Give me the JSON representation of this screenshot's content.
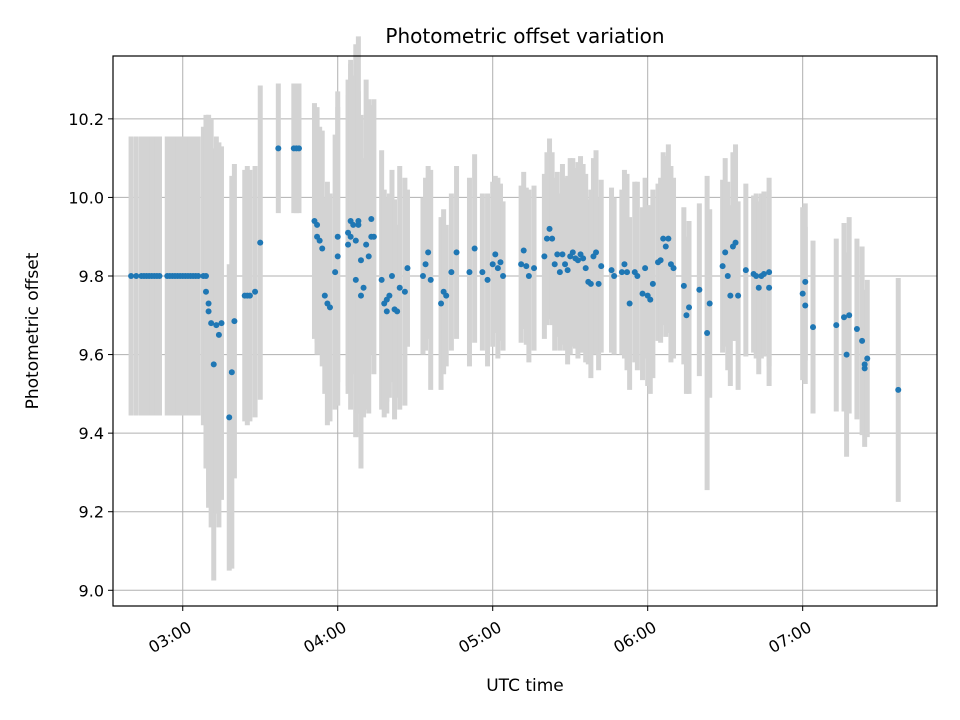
{
  "chart_data": {
    "type": "scatter",
    "title": "Photometric offset variation",
    "xlabel": "UTC time",
    "ylabel": "Photometric offset",
    "x_ticks": [
      "03:00",
      "04:00",
      "05:00",
      "06:00",
      "07:00"
    ],
    "y_ticks": [
      "9.0",
      "9.2",
      "9.4",
      "9.6",
      "9.8",
      "10.0",
      "10.2"
    ],
    "xlim": [
      "02:33",
      "07:52"
    ],
    "ylim": [
      8.96,
      10.36
    ],
    "grid": true,
    "colors": {
      "point": "#1f77b4",
      "errorbar": "#d3d3d3",
      "grid": "#b0b0b0"
    },
    "points": [
      {
        "t": "02:40",
        "y": 9.8,
        "err": 0.355
      },
      {
        "t": "02:42",
        "y": 9.8,
        "err": 0.355
      },
      {
        "t": "02:44",
        "y": 9.8,
        "err": 0.355
      },
      {
        "t": "02:45",
        "y": 9.8,
        "err": 0.355
      },
      {
        "t": "02:46",
        "y": 9.8,
        "err": 0.355
      },
      {
        "t": "02:47",
        "y": 9.8,
        "err": 0.355
      },
      {
        "t": "02:48",
        "y": 9.8,
        "err": 0.355
      },
      {
        "t": "02:49",
        "y": 9.8,
        "err": 0.355
      },
      {
        "t": "02:50",
        "y": 9.8,
        "err": 0.355
      },
      {
        "t": "02:51",
        "y": 9.8,
        "err": 0.355
      },
      {
        "t": "02:54",
        "y": 9.8,
        "err": 0.355
      },
      {
        "t": "02:55",
        "y": 9.8,
        "err": 0.355
      },
      {
        "t": "02:56",
        "y": 9.8,
        "err": 0.355
      },
      {
        "t": "02:57",
        "y": 9.8,
        "err": 0.355
      },
      {
        "t": "02:58",
        "y": 9.8,
        "err": 0.355
      },
      {
        "t": "02:59",
        "y": 9.8,
        "err": 0.355
      },
      {
        "t": "03:00",
        "y": 9.8,
        "err": 0.355
      },
      {
        "t": "03:01",
        "y": 9.8,
        "err": 0.355
      },
      {
        "t": "03:02",
        "y": 9.8,
        "err": 0.355
      },
      {
        "t": "03:03",
        "y": 9.8,
        "err": 0.355
      },
      {
        "t": "03:04",
        "y": 9.8,
        "err": 0.355
      },
      {
        "t": "03:05",
        "y": 9.8,
        "err": 0.355
      },
      {
        "t": "03:06",
        "y": 9.8,
        "err": 0.355
      },
      {
        "t": "03:08",
        "y": 9.8,
        "err": 0.38
      },
      {
        "t": "03:09",
        "y": 9.8,
        "err": 0.4
      },
      {
        "t": "03:09",
        "y": 9.76,
        "err": 0.45
      },
      {
        "t": "03:10",
        "y": 9.73,
        "err": 0.48
      },
      {
        "t": "03:10",
        "y": 9.71,
        "err": 0.5
      },
      {
        "t": "03:11",
        "y": 9.68,
        "err": 0.52
      },
      {
        "t": "03:12",
        "y": 9.575,
        "err": 0.55
      },
      {
        "t": "03:13",
        "y": 9.675,
        "err": 0.48
      },
      {
        "t": "03:14",
        "y": 9.65,
        "err": 0.49
      },
      {
        "t": "03:15",
        "y": 9.68,
        "err": 0.45
      },
      {
        "t": "03:18",
        "y": 9.44,
        "err": 0.39
      },
      {
        "t": "03:19",
        "y": 9.555,
        "err": 0.5
      },
      {
        "t": "03:20",
        "y": 9.685,
        "err": 0.4
      },
      {
        "t": "03:24",
        "y": 9.75,
        "err": 0.32
      },
      {
        "t": "03:25",
        "y": 9.75,
        "err": 0.33
      },
      {
        "t": "03:26",
        "y": 9.75,
        "err": 0.32
      },
      {
        "t": "03:28",
        "y": 9.76,
        "err": 0.32
      },
      {
        "t": "03:30",
        "y": 9.885,
        "err": 0.4
      },
      {
        "t": "03:37",
        "y": 10.125,
        "err": 0.165
      },
      {
        "t": "03:43",
        "y": 10.125,
        "err": 0.165
      },
      {
        "t": "03:44",
        "y": 10.125,
        "err": 0.165
      },
      {
        "t": "03:45",
        "y": 10.125,
        "err": 0.165
      },
      {
        "t": "03:51",
        "y": 9.94,
        "err": 0.3
      },
      {
        "t": "03:52",
        "y": 9.93,
        "err": 0.3
      },
      {
        "t": "03:52",
        "y": 9.9,
        "err": 0.3
      },
      {
        "t": "03:53",
        "y": 9.89,
        "err": 0.29
      },
      {
        "t": "03:54",
        "y": 9.87,
        "err": 0.3
      },
      {
        "t": "03:55",
        "y": 9.75,
        "err": 0.25
      },
      {
        "t": "03:56",
        "y": 9.73,
        "err": 0.31
      },
      {
        "t": "03:57",
        "y": 9.72,
        "err": 0.29
      },
      {
        "t": "03:59",
        "y": 9.81,
        "err": 0.35
      },
      {
        "t": "04:00",
        "y": 9.85,
        "err": 0.38
      },
      {
        "t": "04:00",
        "y": 9.9,
        "err": 0.37
      },
      {
        "t": "04:04",
        "y": 9.88,
        "err": 0.38
      },
      {
        "t": "04:04",
        "y": 9.91,
        "err": 0.39
      },
      {
        "t": "04:05",
        "y": 9.94,
        "err": 0.41
      },
      {
        "t": "04:05",
        "y": 9.9,
        "err": 0.44
      },
      {
        "t": "04:06",
        "y": 9.93,
        "err": 0.38
      },
      {
        "t": "04:07",
        "y": 9.79,
        "err": 0.4
      },
      {
        "t": "04:07",
        "y": 9.89,
        "err": 0.5
      },
      {
        "t": "04:08",
        "y": 9.93,
        "err": 0.48
      },
      {
        "t": "04:08",
        "y": 9.94,
        "err": 0.33
      },
      {
        "t": "04:09",
        "y": 9.84,
        "err": 0.37
      },
      {
        "t": "04:09",
        "y": 9.75,
        "err": 0.44
      },
      {
        "t": "04:10",
        "y": 9.77,
        "err": 0.33
      },
      {
        "t": "04:11",
        "y": 9.88,
        "err": 0.42
      },
      {
        "t": "04:12",
        "y": 9.85,
        "err": 0.4
      },
      {
        "t": "04:13",
        "y": 9.9,
        "err": 0.3
      },
      {
        "t": "04:13",
        "y": 9.945,
        "err": 0.29
      },
      {
        "t": "04:14",
        "y": 9.9,
        "err": 0.35
      },
      {
        "t": "04:17",
        "y": 9.79,
        "err": 0.33
      },
      {
        "t": "04:18",
        "y": 9.73,
        "err": 0.29
      },
      {
        "t": "04:19",
        "y": 9.74,
        "err": 0.26
      },
      {
        "t": "04:19",
        "y": 9.71,
        "err": 0.26
      },
      {
        "t": "04:20",
        "y": 9.75,
        "err": 0.26
      },
      {
        "t": "04:21",
        "y": 9.8,
        "err": 0.27
      },
      {
        "t": "04:22",
        "y": 9.715,
        "err": 0.28
      },
      {
        "t": "04:23",
        "y": 9.71,
        "err": 0.22
      },
      {
        "t": "04:24",
        "y": 9.77,
        "err": 0.31
      },
      {
        "t": "04:26",
        "y": 9.76,
        "err": 0.29
      },
      {
        "t": "04:27",
        "y": 9.82,
        "err": 0.2
      },
      {
        "t": "04:33",
        "y": 9.8,
        "err": 0.2
      },
      {
        "t": "04:34",
        "y": 9.83,
        "err": 0.22
      },
      {
        "t": "04:35",
        "y": 9.86,
        "err": 0.22
      },
      {
        "t": "04:36",
        "y": 9.79,
        "err": 0.28
      },
      {
        "t": "04:40",
        "y": 9.73,
        "err": 0.22
      },
      {
        "t": "04:41",
        "y": 9.76,
        "err": 0.21
      },
      {
        "t": "04:42",
        "y": 9.75,
        "err": 0.18
      },
      {
        "t": "04:44",
        "y": 9.81,
        "err": 0.2
      },
      {
        "t": "04:46",
        "y": 9.86,
        "err": 0.22
      },
      {
        "t": "04:51",
        "y": 9.81,
        "err": 0.24
      },
      {
        "t": "04:53",
        "y": 9.87,
        "err": 0.24
      },
      {
        "t": "04:56",
        "y": 9.81,
        "err": 0.2
      },
      {
        "t": "04:58",
        "y": 9.79,
        "err": 0.22
      },
      {
        "t": "05:00",
        "y": 9.83,
        "err": 0.21
      },
      {
        "t": "05:01",
        "y": 9.855,
        "err": 0.2
      },
      {
        "t": "05:02",
        "y": 9.82,
        "err": 0.23
      },
      {
        "t": "05:03",
        "y": 9.835,
        "err": 0.2
      },
      {
        "t": "05:04",
        "y": 9.8,
        "err": 0.19
      },
      {
        "t": "05:11",
        "y": 9.83,
        "err": 0.2
      },
      {
        "t": "05:12",
        "y": 9.865,
        "err": 0.2
      },
      {
        "t": "05:13",
        "y": 9.825,
        "err": 0.2
      },
      {
        "t": "05:14",
        "y": 9.8,
        "err": 0.22
      },
      {
        "t": "05:16",
        "y": 9.82,
        "err": 0.21
      },
      {
        "t": "05:20",
        "y": 9.85,
        "err": 0.21
      },
      {
        "t": "05:21",
        "y": 9.895,
        "err": 0.22
      },
      {
        "t": "05:22",
        "y": 9.92,
        "err": 0.23
      },
      {
        "t": "05:23",
        "y": 9.895,
        "err": 0.22
      },
      {
        "t": "05:24",
        "y": 9.83,
        "err": 0.22
      },
      {
        "t": "05:25",
        "y": 9.855,
        "err": 0.21
      },
      {
        "t": "05:26",
        "y": 9.81,
        "err": 0.2
      },
      {
        "t": "05:27",
        "y": 9.855,
        "err": 0.23
      },
      {
        "t": "05:28",
        "y": 9.83,
        "err": 0.22
      },
      {
        "t": "05:29",
        "y": 9.815,
        "err": 0.24
      },
      {
        "t": "05:30",
        "y": 9.85,
        "err": 0.25
      },
      {
        "t": "05:31",
        "y": 9.86,
        "err": 0.24
      },
      {
        "t": "05:32",
        "y": 9.845,
        "err": 0.23
      },
      {
        "t": "05:33",
        "y": 9.84,
        "err": 0.25
      },
      {
        "t": "05:34",
        "y": 9.855,
        "err": 0.25
      },
      {
        "t": "05:35",
        "y": 9.845,
        "err": 0.24
      },
      {
        "t": "05:36",
        "y": 9.82,
        "err": 0.24
      },
      {
        "t": "05:37",
        "y": 9.785,
        "err": 0.21
      },
      {
        "t": "05:38",
        "y": 9.78,
        "err": 0.24
      },
      {
        "t": "05:39",
        "y": 9.85,
        "err": 0.25
      },
      {
        "t": "05:40",
        "y": 9.86,
        "err": 0.26
      },
      {
        "t": "05:41",
        "y": 9.78,
        "err": 0.22
      },
      {
        "t": "05:42",
        "y": 9.825,
        "err": 0.22
      },
      {
        "t": "05:46",
        "y": 9.815,
        "err": 0.21
      },
      {
        "t": "05:47",
        "y": 9.8,
        "err": 0.2
      },
      {
        "t": "05:50",
        "y": 9.81,
        "err": 0.21
      },
      {
        "t": "05:51",
        "y": 9.83,
        "err": 0.24
      },
      {
        "t": "05:52",
        "y": 9.81,
        "err": 0.25
      },
      {
        "t": "05:53",
        "y": 9.73,
        "err": 0.22
      },
      {
        "t": "05:55",
        "y": 9.81,
        "err": 0.23
      },
      {
        "t": "05:56",
        "y": 9.8,
        "err": 0.24
      },
      {
        "t": "05:58",
        "y": 9.755,
        "err": 0.22
      },
      {
        "t": "05:59",
        "y": 9.82,
        "err": 0.23
      },
      {
        "t": "06:00",
        "y": 9.75,
        "err": 0.23
      },
      {
        "t": "06:01",
        "y": 9.74,
        "err": 0.24
      },
      {
        "t": "06:02",
        "y": 9.78,
        "err": 0.24
      },
      {
        "t": "06:04",
        "y": 9.835,
        "err": 0.2
      },
      {
        "t": "06:05",
        "y": 9.84,
        "err": 0.21
      },
      {
        "t": "06:06",
        "y": 9.895,
        "err": 0.22
      },
      {
        "t": "06:07",
        "y": 9.875,
        "err": 0.23
      },
      {
        "t": "06:08",
        "y": 9.895,
        "err": 0.24
      },
      {
        "t": "06:09",
        "y": 9.83,
        "err": 0.25
      },
      {
        "t": "06:10",
        "y": 9.82,
        "err": 0.23
      },
      {
        "t": "06:14",
        "y": 9.775,
        "err": 0.2
      },
      {
        "t": "06:15",
        "y": 9.7,
        "err": 0.2
      },
      {
        "t": "06:16",
        "y": 9.72,
        "err": 0.22
      },
      {
        "t": "06:20",
        "y": 9.765,
        "err": 0.22
      },
      {
        "t": "06:23",
        "y": 9.655,
        "err": 0.4
      },
      {
        "t": "06:24",
        "y": 9.73,
        "err": 0.24
      },
      {
        "t": "06:29",
        "y": 9.825,
        "err": 0.22
      },
      {
        "t": "06:30",
        "y": 9.86,
        "err": 0.24
      },
      {
        "t": "06:31",
        "y": 9.8,
        "err": 0.24
      },
      {
        "t": "06:32",
        "y": 9.75,
        "err": 0.23
      },
      {
        "t": "06:33",
        "y": 9.875,
        "err": 0.24
      },
      {
        "t": "06:34",
        "y": 9.885,
        "err": 0.25
      },
      {
        "t": "06:35",
        "y": 9.75,
        "err": 0.24
      },
      {
        "t": "06:38",
        "y": 9.815,
        "err": 0.22
      },
      {
        "t": "06:41",
        "y": 9.805,
        "err": 0.2
      },
      {
        "t": "06:42",
        "y": 9.8,
        "err": 0.21
      },
      {
        "t": "06:43",
        "y": 9.77,
        "err": 0.22
      },
      {
        "t": "06:44",
        "y": 9.8,
        "err": 0.21
      },
      {
        "t": "06:45",
        "y": 9.805,
        "err": 0.21
      },
      {
        "t": "06:47",
        "y": 9.81,
        "err": 0.24
      },
      {
        "t": "06:47",
        "y": 9.77,
        "err": 0.25
      },
      {
        "t": "07:00",
        "y": 9.755,
        "err": 0.22
      },
      {
        "t": "07:01",
        "y": 9.725,
        "err": 0.2
      },
      {
        "t": "07:01",
        "y": 9.785,
        "err": 0.2
      },
      {
        "t": "07:04",
        "y": 9.67,
        "err": 0.22
      },
      {
        "t": "07:13",
        "y": 9.675,
        "err": 0.22
      },
      {
        "t": "07:16",
        "y": 9.695,
        "err": 0.24
      },
      {
        "t": "07:17",
        "y": 9.6,
        "err": 0.26
      },
      {
        "t": "07:18",
        "y": 9.7,
        "err": 0.25
      },
      {
        "t": "07:21",
        "y": 9.665,
        "err": 0.23
      },
      {
        "t": "07:23",
        "y": 9.635,
        "err": 0.24
      },
      {
        "t": "07:24",
        "y": 9.565,
        "err": 0.2
      },
      {
        "t": "07:24",
        "y": 9.575,
        "err": 0.18
      },
      {
        "t": "07:25",
        "y": 9.59,
        "err": 0.2
      },
      {
        "t": "07:37",
        "y": 9.51,
        "err": 0.285
      }
    ]
  }
}
